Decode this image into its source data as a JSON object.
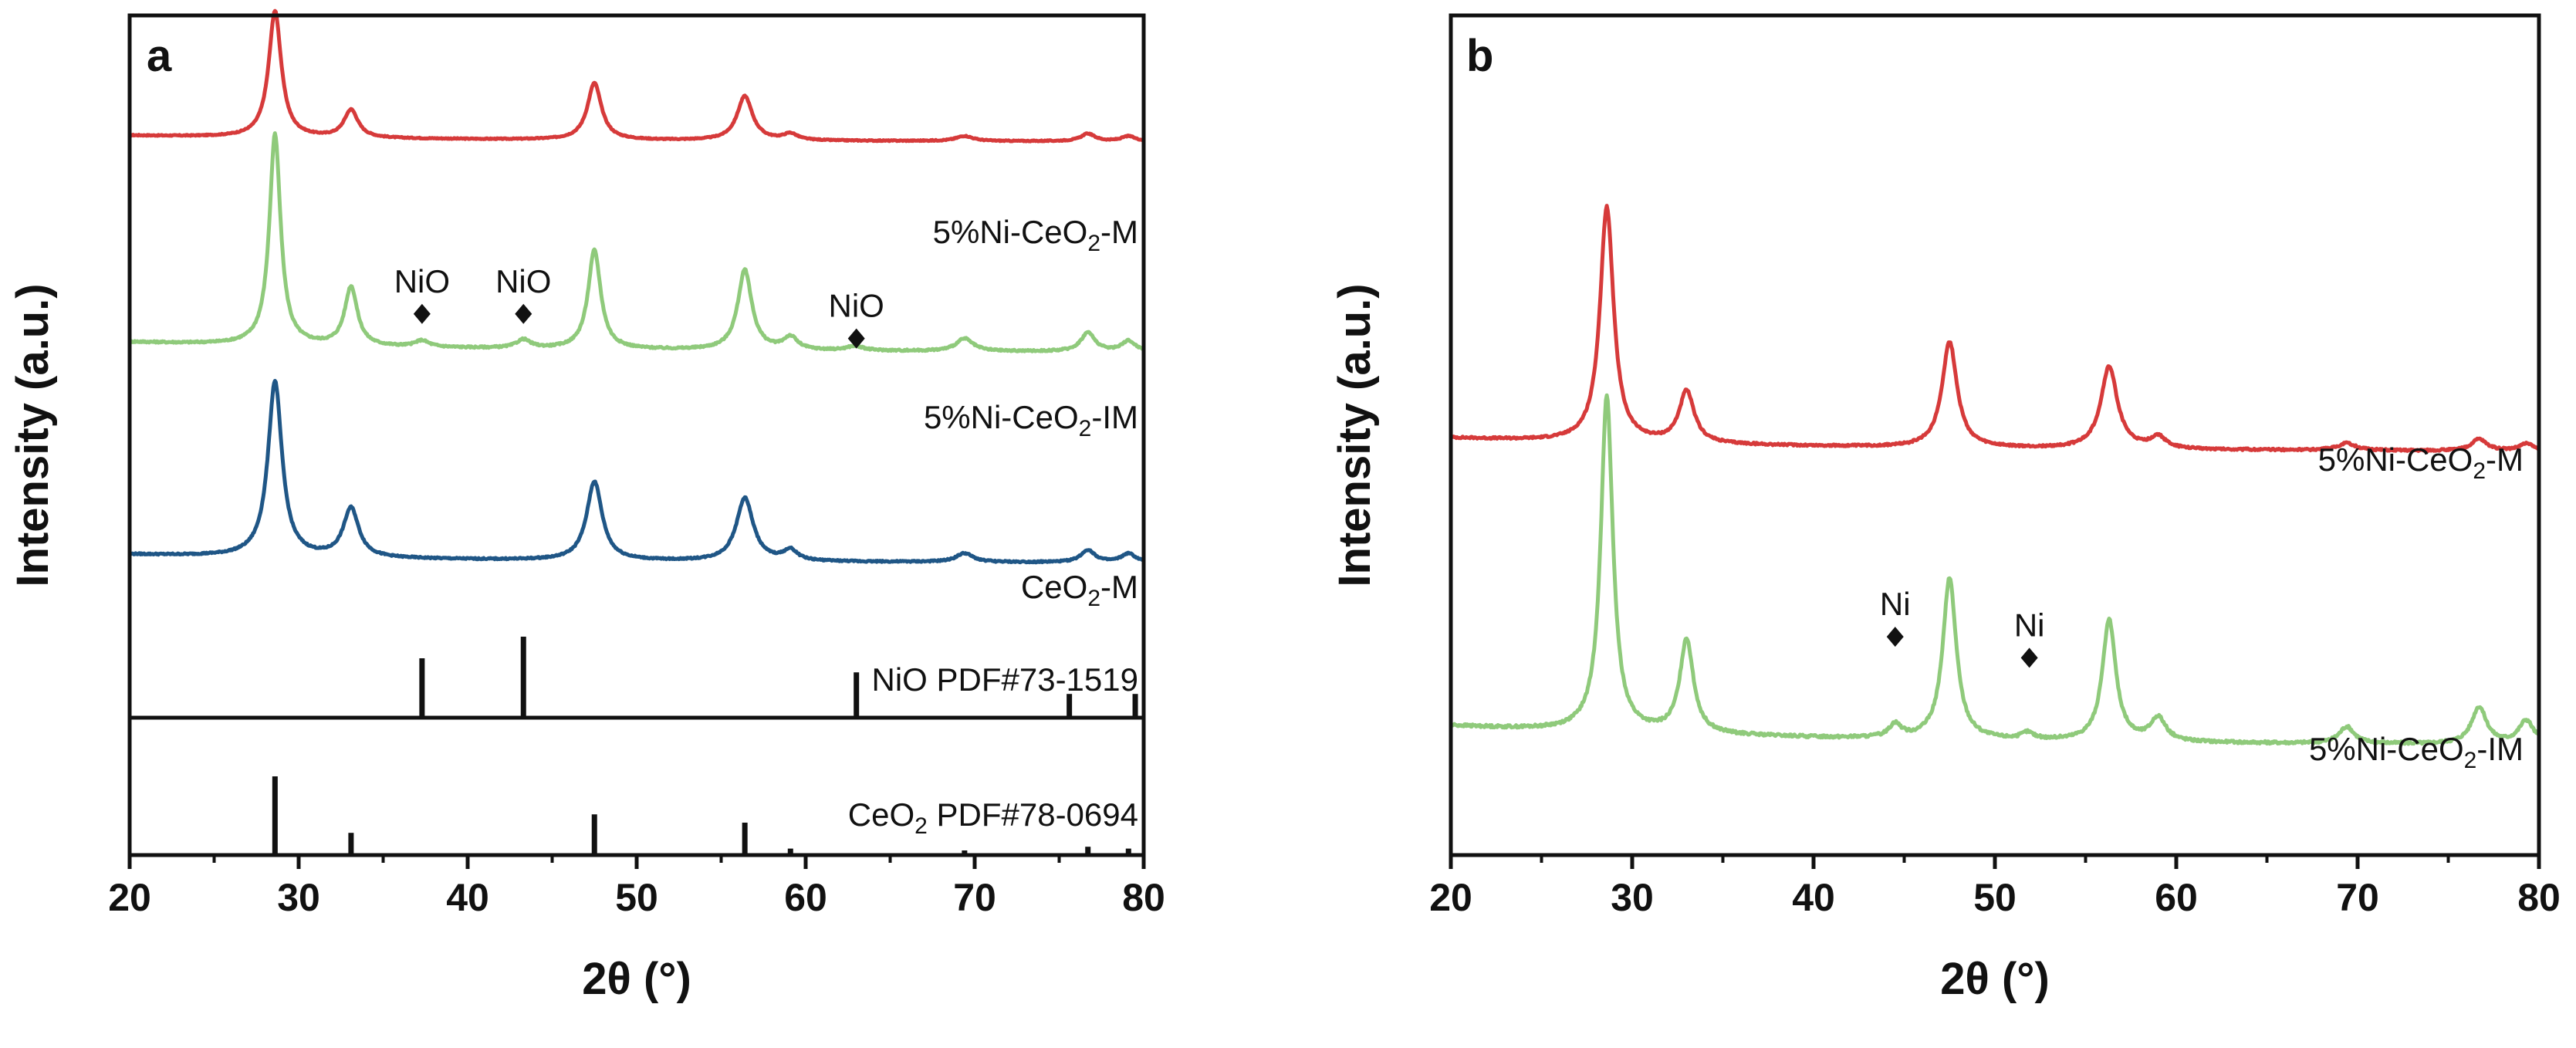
{
  "chart_data": [
    {
      "panel": "a",
      "type": "line",
      "xlabel": "2θ (°)",
      "ylabel": "Intensity (a.u.)",
      "xlim": [
        20,
        80
      ],
      "xticks": [
        20,
        30,
        40,
        50,
        60,
        70,
        80
      ],
      "yticks_shown": false,
      "series": [
        {
          "name": "5%Ni-CeO2-M",
          "label_main": "5%Ni-CeO",
          "label_sub": "2",
          "label_tail": "-M",
          "color": "#d63a3a",
          "offset": 0.82,
          "baseline": 0.05,
          "scale": 0.18,
          "peaks": [
            [
              28.6,
              1.0,
              0.45
            ],
            [
              33.1,
              0.22,
              0.5
            ],
            [
              47.5,
              0.45,
              0.5
            ],
            [
              56.4,
              0.35,
              0.55
            ],
            [
              59.1,
              0.05,
              0.5
            ],
            [
              69.4,
              0.04,
              0.6
            ],
            [
              76.7,
              0.06,
              0.5
            ],
            [
              79.1,
              0.04,
              0.5
            ]
          ]
        },
        {
          "name": "5%Ni-CeO2-IM",
          "label_main": "5%Ni-CeO",
          "label_sub": "2",
          "label_tail": "-IM",
          "color": "#8fca7b",
          "offset": 0.52,
          "baseline": 0.05,
          "scale": 0.3,
          "peaks": [
            [
              28.6,
              1.0,
              0.4
            ],
            [
              33.1,
              0.28,
              0.45
            ],
            [
              37.3,
              0.03,
              0.5
            ],
            [
              43.3,
              0.04,
              0.5
            ],
            [
              47.5,
              0.47,
              0.45
            ],
            [
              56.4,
              0.38,
              0.5
            ],
            [
              59.1,
              0.06,
              0.5
            ],
            [
              62.9,
              0.02,
              0.6
            ],
            [
              69.4,
              0.06,
              0.6
            ],
            [
              76.7,
              0.09,
              0.5
            ],
            [
              79.1,
              0.05,
              0.5
            ]
          ]
        },
        {
          "name": "CeO2-M",
          "label_main": "CeO",
          "label_sub": "2",
          "label_tail": "-M",
          "color": "#1f5686",
          "offset": 0.22,
          "baseline": 0.05,
          "scale": 0.25,
          "peaks": [
            [
              28.6,
              1.0,
              0.5
            ],
            [
              33.1,
              0.28,
              0.55
            ],
            [
              47.5,
              0.45,
              0.55
            ],
            [
              56.4,
              0.36,
              0.6
            ],
            [
              59.1,
              0.06,
              0.5
            ],
            [
              69.4,
              0.05,
              0.6
            ],
            [
              76.7,
              0.07,
              0.5
            ],
            [
              79.1,
              0.05,
              0.5
            ]
          ]
        }
      ],
      "annotations": [
        {
          "text": "NiO",
          "x": 37.3,
          "y": 0.575
        },
        {
          "text": "NiO",
          "x": 43.3,
          "y": 0.575
        },
        {
          "text": "NiO",
          "x": 63.0,
          "y": 0.54
        }
      ],
      "reference_patterns": [
        {
          "name": "NiO PDF#73-1519",
          "label_main": "NiO PDF#73-1519",
          "label_sub": "",
          "label_tail": "",
          "lines": [
            [
              37.3,
              0.55
            ],
            [
              43.3,
              0.75
            ],
            [
              63.0,
              0.42
            ],
            [
              75.6,
              0.22
            ],
            [
              79.5,
              0.22
            ]
          ]
        },
        {
          "name": "CeO2 PDF#78-0694",
          "label_main": "CeO",
          "label_sub": "2",
          "label_tail": " PDF#78-0694",
          "lines": [
            [
              28.6,
              0.85
            ],
            [
              33.1,
              0.24
            ],
            [
              47.5,
              0.44
            ],
            [
              56.4,
              0.35
            ],
            [
              59.1,
              0.07
            ],
            [
              69.4,
              0.05
            ],
            [
              76.7,
              0.09
            ],
            [
              79.1,
              0.07
            ]
          ]
        }
      ]
    },
    {
      "panel": "b",
      "type": "line",
      "xlabel": "2θ (°)",
      "ylabel": "Intensity (a.u.)",
      "xlim": [
        20,
        80
      ],
      "xticks": [
        20,
        30,
        40,
        50,
        60,
        70,
        80
      ],
      "yticks_shown": false,
      "series": [
        {
          "name": "5%Ni-CeO2-M",
          "label_main": "5%Ni-CeO",
          "label_sub": "2",
          "label_tail": "-M",
          "color": "#d63a3a",
          "offset": 0.48,
          "baseline": 0.06,
          "scale": 0.28,
          "peaks": [
            [
              28.6,
              1.0,
              0.45
            ],
            [
              33.0,
              0.22,
              0.5
            ],
            [
              47.5,
              0.45,
              0.5
            ],
            [
              56.3,
              0.35,
              0.55
            ],
            [
              59.0,
              0.05,
              0.5
            ],
            [
              69.4,
              0.03,
              0.6
            ],
            [
              76.7,
              0.05,
              0.5
            ],
            [
              79.3,
              0.03,
              0.5
            ]
          ]
        },
        {
          "name": "5%Ni-CeO2-IM",
          "label_main": "5%Ni-CeO",
          "label_sub": "2",
          "label_tail": "-IM",
          "color": "#8fca7b",
          "offset": 0.13,
          "baseline": 0.06,
          "scale": 0.4,
          "peaks": [
            [
              28.6,
              1.0,
              0.4
            ],
            [
              33.0,
              0.28,
              0.45
            ],
            [
              44.5,
              0.04,
              0.4
            ],
            [
              47.5,
              0.48,
              0.45
            ],
            [
              51.8,
              0.02,
              0.4
            ],
            [
              56.3,
              0.36,
              0.45
            ],
            [
              59.0,
              0.07,
              0.5
            ],
            [
              69.4,
              0.05,
              0.5
            ],
            [
              76.7,
              0.11,
              0.5
            ],
            [
              79.3,
              0.07,
              0.5
            ]
          ]
        }
      ],
      "annotations": [
        {
          "text": "Ni",
          "x": 44.5,
          "y": 0.26
        },
        {
          "text": "Ni",
          "x": 51.9,
          "y": 0.235
        }
      ],
      "reference_patterns": []
    }
  ]
}
